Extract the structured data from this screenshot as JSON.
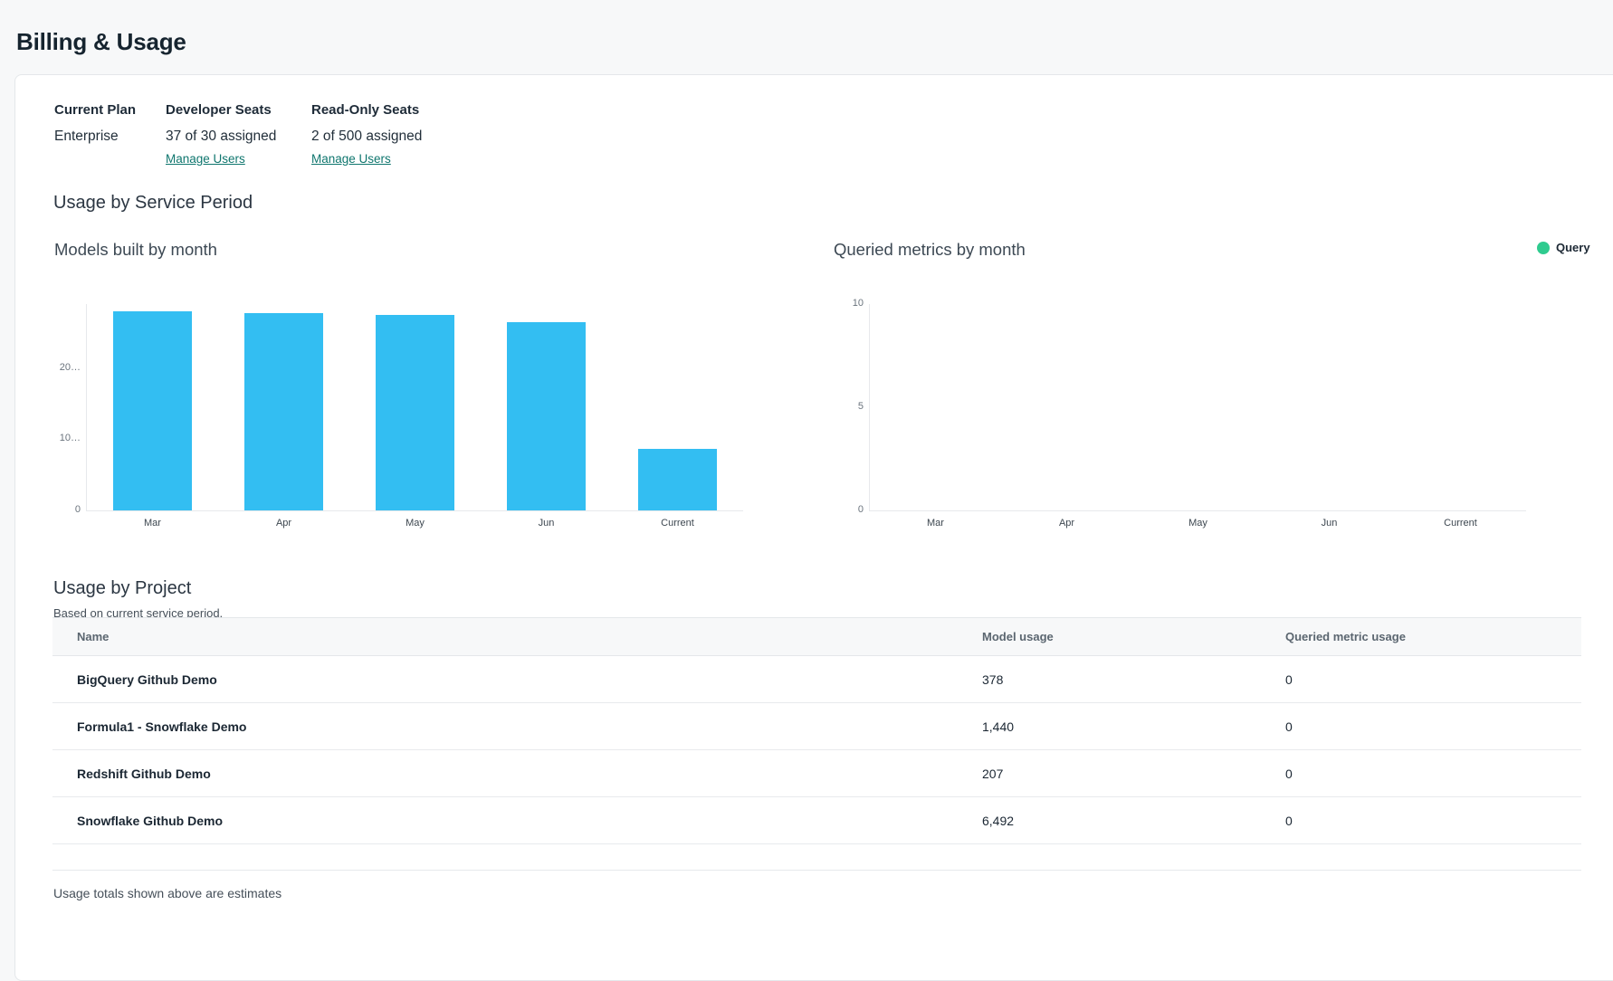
{
  "page": {
    "title": "Billing & Usage"
  },
  "plan_summary": {
    "columns": [
      {
        "label": "Current Plan",
        "value": "Enterprise",
        "link": null
      },
      {
        "label": "Developer Seats",
        "value": "37 of 30 assigned",
        "link": "Manage Users"
      },
      {
        "label": "Read-Only Seats",
        "value": "2 of 500 assigned",
        "link": "Manage Users"
      }
    ]
  },
  "sections": {
    "service_period_title": "Usage by Service Period",
    "project_title": "Usage by Project",
    "project_subtitle": "Based on current service period."
  },
  "chart_data": [
    {
      "type": "bar",
      "title": "Models built by month",
      "categories": [
        "Mar",
        "Apr",
        "May",
        "Jun",
        "Current"
      ],
      "series": [
        {
          "name": "Models built",
          "values": [
            28000,
            27700,
            27500,
            26500,
            8700
          ]
        }
      ],
      "ylim": [
        0,
        29000
      ],
      "yticks": [
        {
          "label": "0",
          "value": 0
        },
        {
          "label": "10…",
          "value": 10000
        },
        {
          "label": "20…",
          "value": 20000
        }
      ],
      "bar_color": "#33bef2",
      "grid": false,
      "legend": null
    },
    {
      "type": "bar",
      "title": "Queried metrics by month",
      "categories": [
        "Mar",
        "Apr",
        "May",
        "Jun",
        "Current"
      ],
      "series": [
        {
          "name": "Query",
          "values": [
            0,
            0,
            0,
            0,
            0
          ]
        }
      ],
      "ylim": [
        0,
        10
      ],
      "yticks": [
        {
          "label": "0",
          "value": 0
        },
        {
          "label": "5",
          "value": 5
        },
        {
          "label": "10",
          "value": 10
        }
      ],
      "bar_color": "#2fcb8f",
      "grid": false,
      "legend": [
        {
          "label": "Query",
          "color": "#2fcb8f"
        }
      ]
    }
  ],
  "table": {
    "headers": [
      "Name",
      "Model usage",
      "Queried metric usage"
    ],
    "rows": [
      {
        "name": "BigQuery Github Demo",
        "model_usage": "378",
        "queried_metric_usage": "0"
      },
      {
        "name": "Formula1 - Snowflake Demo",
        "model_usage": "1,440",
        "queried_metric_usage": "0"
      },
      {
        "name": "Redshift Github Demo",
        "model_usage": "207",
        "queried_metric_usage": "0"
      },
      {
        "name": "Snowflake Github Demo",
        "model_usage": "6,492",
        "queried_metric_usage": "0"
      }
    ]
  },
  "footer_note": "Usage totals shown above are estimates",
  "colors": {
    "bar_blue": "#33bef2",
    "legend_green": "#2fcb8f",
    "link_teal": "#0f766e",
    "page_bg": "#f7f8f9"
  }
}
